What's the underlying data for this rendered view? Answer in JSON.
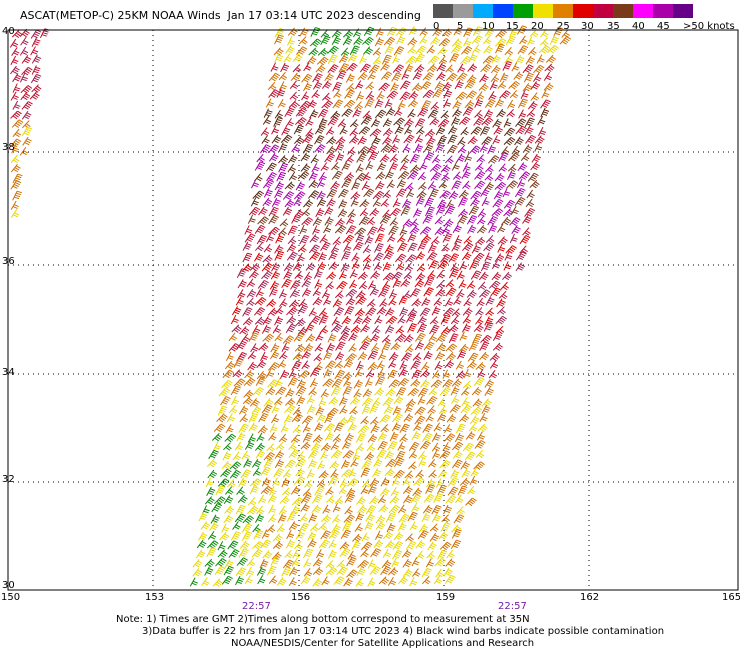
{
  "title": "ASCAT(METOP-C) 25KM NOAA Winds  Jan 17 03:14 UTC 2023 descending",
  "colorbar": {
    "labels": [
      "0",
      "5",
      "10",
      "15",
      "20",
      "25",
      "30",
      "35",
      "40",
      "45",
      ">50 knots"
    ],
    "colors": [
      "#555555",
      "#9a9a9a",
      "#00aaff",
      "#0044ff",
      "#00a000",
      "#f0e000",
      "#e08000",
      "#e00000",
      "#c00040",
      "#7a3a1a",
      "#ff00ff",
      "#aa00aa",
      "#660088"
    ]
  },
  "map": {
    "lon_ticks": [
      "150",
      "153",
      "156",
      "159",
      "162",
      "165"
    ],
    "lat_ticks": [
      "30",
      "32",
      "34",
      "36",
      "38",
      "40"
    ],
    "time_labels": [
      "22:57",
      "22:57"
    ]
  },
  "notes": {
    "line1": "Note: 1) Times are GMT 2)Times along bottom correspond to measurement at 35N",
    "line2": "3)Data buffer is 22 hrs from Jan 17 03:14 UTC 2023 4) Black wind barbs indicate possible contamination",
    "line3": "NOAA/NESDIS/Center for Satellite Applications and Research"
  }
}
